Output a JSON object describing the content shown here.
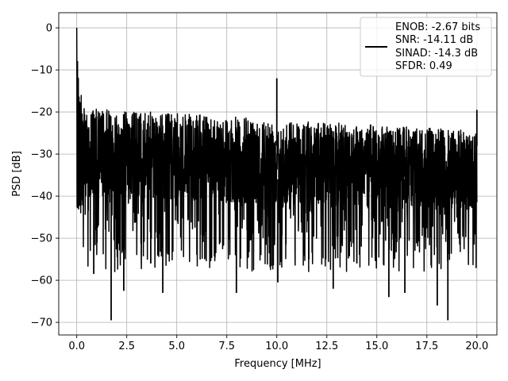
{
  "chart_data": {
    "type": "line",
    "xlabel": "Frequency [MHz]",
    "ylabel": "PSD [dB]",
    "xlim": [
      -0.9,
      21.0
    ],
    "ylim": [
      -73.0,
      3.6
    ],
    "xticks": [
      0.0,
      2.5,
      5.0,
      7.5,
      10.0,
      12.5,
      15.0,
      17.5,
      20.0
    ],
    "xtick_labels": [
      "0.0",
      "2.5",
      "5.0",
      "7.5",
      "10.0",
      "12.5",
      "15.0",
      "17.5",
      "20.0"
    ],
    "yticks": [
      0,
      -10,
      -20,
      -30,
      -40,
      -50,
      -60,
      -70
    ],
    "ytick_labels": [
      "0",
      "−10",
      "−20",
      "−30",
      "−40",
      "−50",
      "−60",
      "−70"
    ],
    "grid": true,
    "legend_position": "top-right",
    "series": [
      {
        "legend_lines": [
          "ENOB: -2.67 bits",
          "SNR: -14.11 dB",
          "SINAD: -14.3 dB",
          "SFDR: 0.49"
        ],
        "color": "#000000",
        "description_points": {
          "x_range": [
            0.0,
            20.0
          ],
          "dc_peak": {
            "x": 0.0,
            "y": 0.0
          },
          "spur": {
            "x": 10.0,
            "y": -12.0
          },
          "edge_spike": {
            "x": 20.0,
            "y": -19.5
          },
          "noise_upper_start": -19.0,
          "noise_upper_end": -24.5,
          "noise_mean_start": -30.0,
          "noise_mean_end": -33.5,
          "noise_lower": -50.0
        },
        "notable_dips": [
          {
            "x": 1.72,
            "y": -69.5
          },
          {
            "x": 4.3,
            "y": -63.0
          },
          {
            "x": 2.35,
            "y": -62.5
          },
          {
            "x": 0.85,
            "y": -58.5
          },
          {
            "x": 7.98,
            "y": -63.0
          },
          {
            "x": 10.05,
            "y": -60.5
          },
          {
            "x": 12.82,
            "y": -62.0
          },
          {
            "x": 15.6,
            "y": -64.0
          },
          {
            "x": 16.4,
            "y": -63.0
          },
          {
            "x": 18.02,
            "y": -66.0
          },
          {
            "x": 18.55,
            "y": -69.5
          },
          {
            "x": 9.2,
            "y": -54.0
          },
          {
            "x": 11.6,
            "y": -55.0
          },
          {
            "x": 14.0,
            "y": -56.0
          },
          {
            "x": 3.7,
            "y": -56.0
          },
          {
            "x": 6.4,
            "y": -55.0
          }
        ]
      }
    ]
  }
}
